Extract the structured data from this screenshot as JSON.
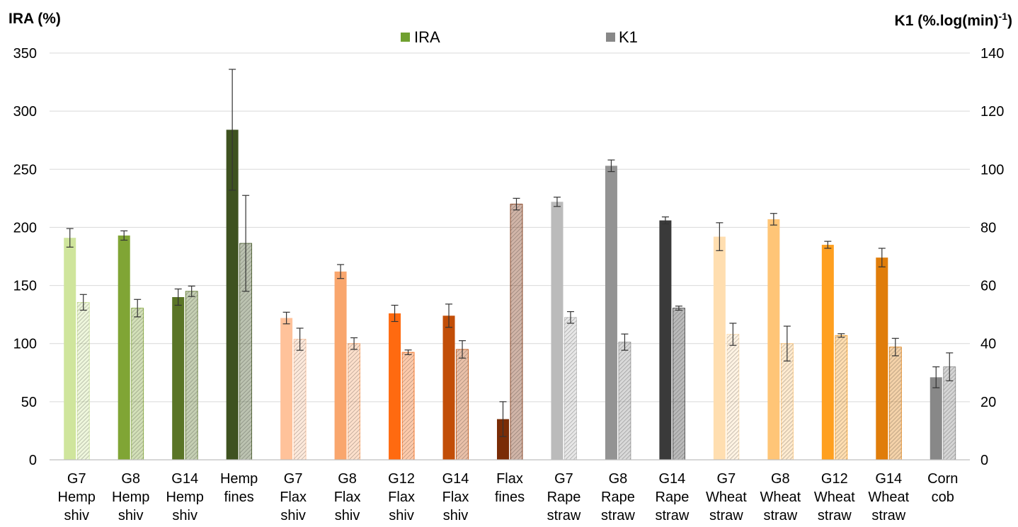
{
  "chart_data": {
    "type": "bar",
    "left_axis_title": "IRA (%)",
    "right_axis_title": "K1 (%.log(min)",
    "right_axis_title_sup": "-1",
    "right_axis_title_close": ")",
    "left_ylim": [
      0,
      350
    ],
    "right_ylim": [
      0,
      140
    ],
    "left_ticks": [
      "0",
      "50",
      "100",
      "150",
      "200",
      "250",
      "300",
      "350"
    ],
    "right_ticks": [
      "0",
      "20",
      "40",
      "60",
      "80",
      "100",
      "120",
      "140"
    ],
    "grid": true,
    "legend_position": "top-center",
    "legend": [
      {
        "name": "IRA",
        "color": "#70a030"
      },
      {
        "name": "K1",
        "color": "#888888"
      }
    ],
    "categories": [
      [
        "G7",
        "Hemp",
        "shiv"
      ],
      [
        "G8",
        "Hemp",
        "shiv"
      ],
      [
        "G14",
        "Hemp",
        "shiv"
      ],
      [
        "Hemp",
        "fines"
      ],
      [
        "G7",
        "Flax",
        "shiv"
      ],
      [
        "G8",
        "Flax",
        "shiv"
      ],
      [
        "G12",
        "Flax",
        "shiv"
      ],
      [
        "G14",
        "Flax",
        "shiv"
      ],
      [
        "Flax",
        "fines"
      ],
      [
        "G7",
        "Rape",
        "straw"
      ],
      [
        "G8",
        "Rape",
        "straw"
      ],
      [
        "G14",
        "Rape",
        "straw"
      ],
      [
        "G7",
        "Wheat",
        "straw"
      ],
      [
        "G8",
        "Wheat",
        "straw"
      ],
      [
        "G12",
        "Wheat",
        "straw"
      ],
      [
        "G14",
        "Wheat",
        "straw"
      ],
      [
        "Corn",
        "cob"
      ]
    ],
    "colors": [
      "#cfe59c",
      "#80a535",
      "#5a7526",
      "#3e5220",
      "#ffc29a",
      "#f9a66d",
      "#ff6a10",
      "#c24e08",
      "#7a2c06",
      "#bbbbbb",
      "#939393",
      "#3a3a3a",
      "#ffdeb0",
      "#ffc577",
      "#ffa020",
      "#e07d0a",
      "#888888"
    ],
    "series": [
      {
        "name": "IRA",
        "axis": "left",
        "values": [
          191,
          193,
          140,
          284,
          122,
          162,
          126,
          124,
          35,
          222,
          253,
          206,
          192,
          207,
          185,
          174,
          71
        ],
        "errors": [
          8,
          4,
          7,
          52,
          5,
          6,
          7,
          10,
          15,
          4,
          5,
          3,
          12,
          5,
          3,
          8,
          9
        ]
      },
      {
        "name": "K1",
        "axis": "right",
        "values": [
          54.2,
          52.2,
          58,
          74.5,
          41.5,
          40,
          37,
          38,
          88,
          49,
          40.5,
          52.2,
          43.2,
          40,
          42.8,
          38.8,
          32
        ],
        "errors": [
          2.7,
          3,
          1.8,
          16.5,
          3.8,
          2,
          0.8,
          3,
          2,
          2,
          2.8,
          0.7,
          3.8,
          6,
          0.6,
          3,
          4.8
        ]
      }
    ]
  }
}
